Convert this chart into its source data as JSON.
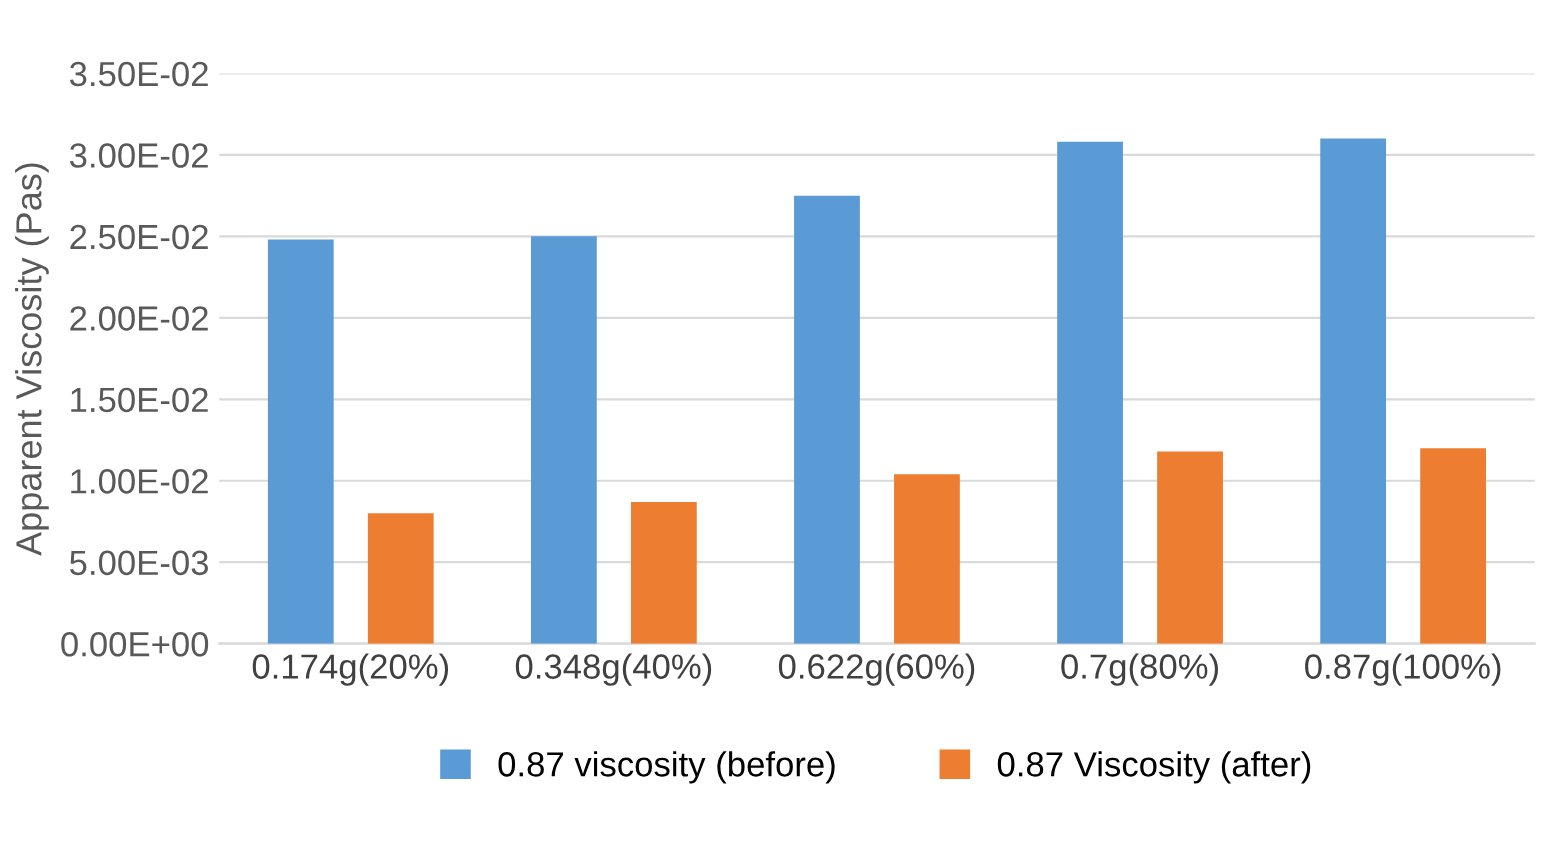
{
  "chart_data": {
    "type": "bar",
    "ylabel": "Apparent Viscosity (Pas)",
    "categories": [
      "0.174g(20%)",
      "0.348g(40%)",
      "0.622g(60%)",
      "0.7g(80%)",
      "0.87g(100%)"
    ],
    "series": [
      {
        "name": "0.87 viscosity (before)",
        "color": "#5b9bd5",
        "values": [
          0.0248,
          0.025,
          0.0275,
          0.0308,
          0.031
        ]
      },
      {
        "name": "0.87 Viscosity (after)",
        "color": "#ed7d31",
        "values": [
          0.008,
          0.0087,
          0.0104,
          0.0118,
          0.012
        ]
      }
    ],
    "ylim": [
      0,
      0.035
    ],
    "yticks": [
      {
        "value": 0,
        "label": "0.00E+00"
      },
      {
        "value": 0.005,
        "label": "5.00E-03"
      },
      {
        "value": 0.01,
        "label": "1.00E-02"
      },
      {
        "value": 0.015,
        "label": "1.50E-02"
      },
      {
        "value": 0.02,
        "label": "2.00E-02"
      },
      {
        "value": 0.025,
        "label": "2.50E-02"
      },
      {
        "value": 0.03,
        "label": "3.00E-02"
      },
      {
        "value": 0.035,
        "label": "3.50E-02"
      }
    ],
    "grid": "y",
    "legend": "bottom"
  }
}
